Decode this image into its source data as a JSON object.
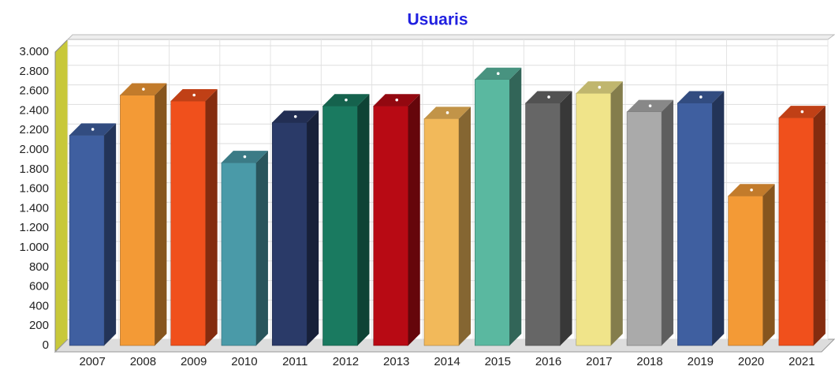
{
  "chart_data": {
    "type": "bar3d",
    "title": "Usuaris",
    "categories": [
      "2007",
      "2008",
      "2009",
      "2010",
      "2011",
      "2012",
      "2013",
      "2014",
      "2015",
      "2016",
      "2017",
      "2018",
      "2019",
      "2020",
      "2021"
    ],
    "values": [
      2150,
      2560,
      2500,
      1870,
      2280,
      2450,
      2450,
      2320,
      2720,
      2480,
      2580,
      2390,
      2480,
      1530,
      2330
    ],
    "colors": [
      "#3f5fa0",
      "#f39a36",
      "#f0501c",
      "#4a9aa8",
      "#2a3a68",
      "#1a7a60",
      "#b80a14",
      "#f2b95a",
      "#5ab8a0",
      "#666666",
      "#f0e48a",
      "#aaaaaa",
      "#3f5fa0",
      "#f39a36",
      "#f0501c"
    ],
    "ylim": [
      0,
      3000
    ],
    "yticks": [
      0,
      200,
      400,
      600,
      800,
      {
        "value": 1000,
        "label": "1.000"
      },
      {
        "value": 1200,
        "label": "1.200"
      },
      {
        "value": 1400,
        "label": "1.400"
      },
      {
        "value": 1600,
        "label": "1.600"
      },
      {
        "value": 1800,
        "label": "1.800"
      },
      {
        "value": 2000,
        "label": "2.000"
      },
      {
        "value": 2200,
        "label": "2.200"
      },
      {
        "value": 2400,
        "label": "2.400"
      },
      {
        "value": 2600,
        "label": "2.600"
      },
      {
        "value": 2800,
        "label": "2.800"
      },
      {
        "value": 3000,
        "label": "3.000"
      }
    ],
    "grid": true
  }
}
